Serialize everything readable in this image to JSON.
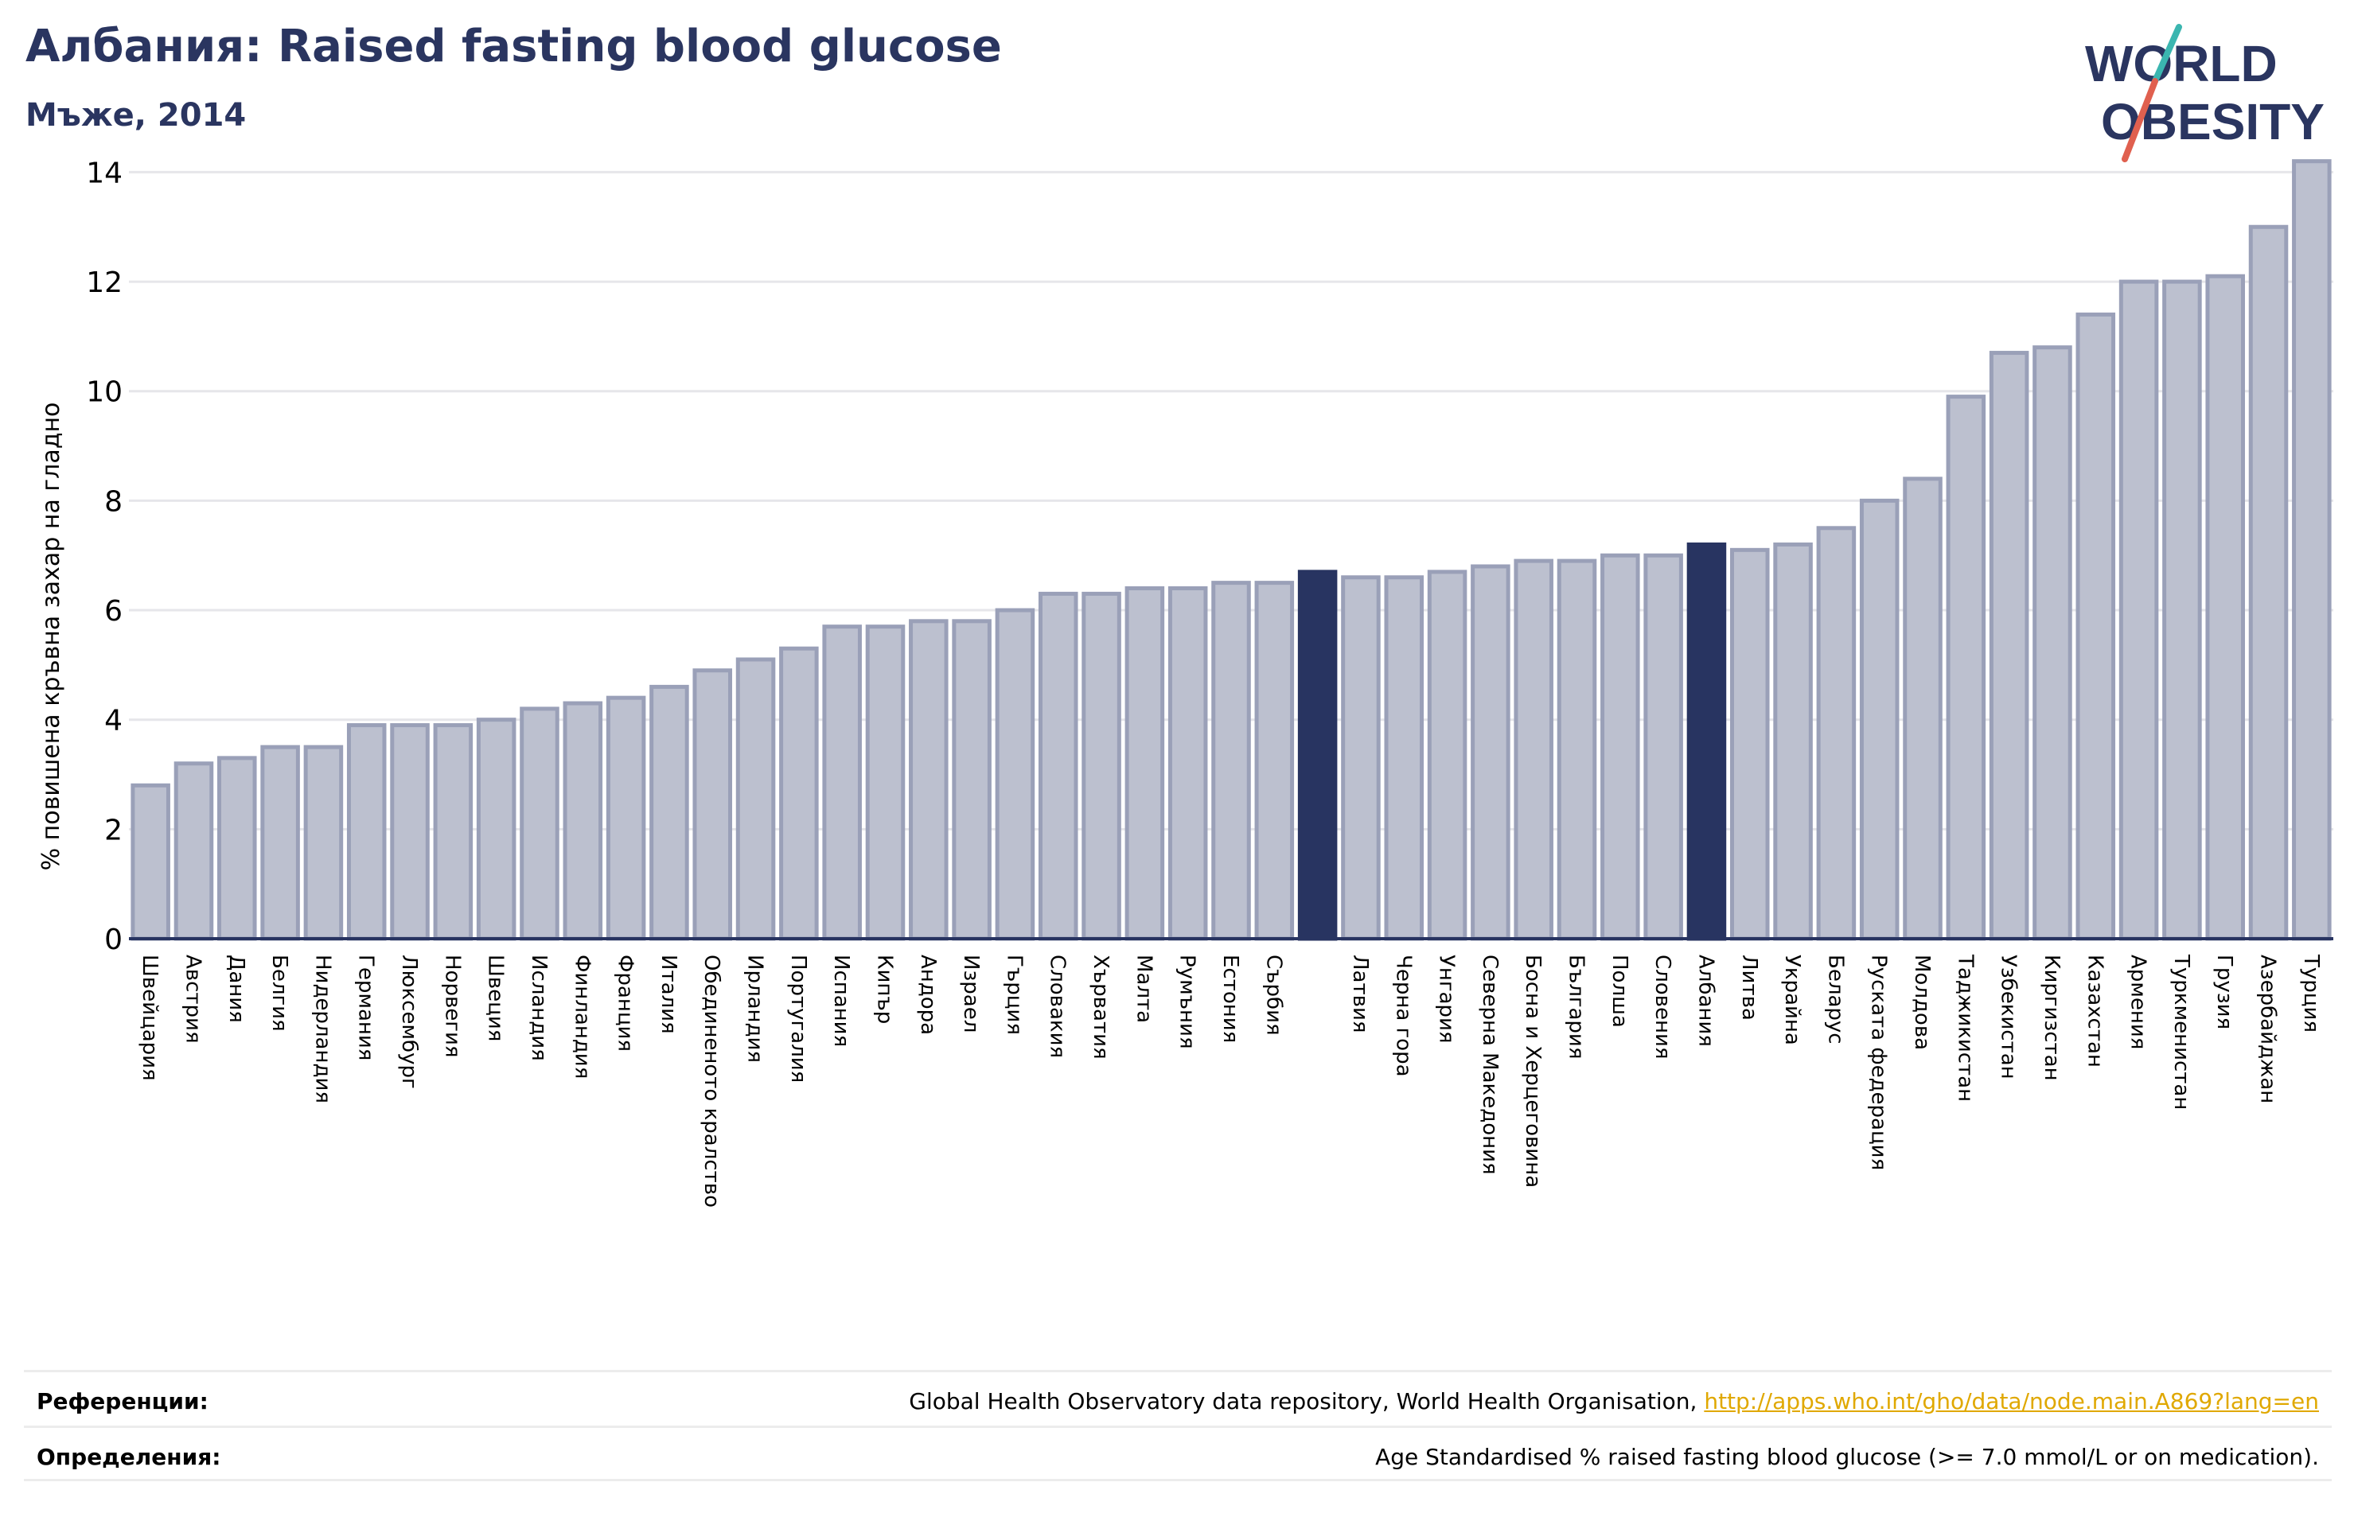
{
  "header": {
    "title": "Албания: Raised fasting blood glucose",
    "subtitle": "Мъже, 2014"
  },
  "logo": {
    "line1": "WORLD",
    "line2": "OBESITY",
    "slash_top_color": "#3bb6b0",
    "slash_bottom_color": "#e0604f",
    "text_color": "#2a3560"
  },
  "colors": {
    "bar_fill": "#bcc0cf",
    "bar_stroke": "#9aa0b8",
    "highlight": "#283461",
    "axis": "#283461",
    "grid": "#e6e6ea"
  },
  "chart_data": {
    "type": "bar",
    "ylabel": "% повишена кръвна захар на гладно",
    "ylim": [
      0,
      14.5
    ],
    "yticks": [
      0,
      2,
      4,
      6,
      8,
      10,
      12,
      14
    ],
    "grid": true,
    "categories": [
      "Швейцария",
      "Австрия",
      "Дания",
      "Белгия",
      "Нидерландия",
      "Германия",
      "Люксембург",
      "Норвегия",
      "Швеция",
      "Исландия",
      "Финландия",
      "Франция",
      "Италия",
      "Обединеното кралство",
      "Ирландия",
      "Португалия",
      "Испания",
      "Кипър",
      "Андора",
      "Израел",
      "Гърция",
      "Словакия",
      "Хърватия",
      "Малта",
      "Румъния",
      "Естония",
      "Сърбия",
      "",
      "Латвия",
      "Черна гора",
      "Унгария",
      "Северна Македония",
      "Босна и Херцеговина",
      "България",
      "Полша",
      "Словения",
      "Албания",
      "Литва",
      "Украйна",
      "Беларус",
      "Руската федерация",
      "Молдова",
      "Таджикистан",
      "Узбекистан",
      "Киргизстан",
      "Казахстан",
      "Армения",
      "Туркменистан",
      "Грузия",
      "Азербайджан",
      "Турция"
    ],
    "values": [
      2.8,
      3.2,
      3.3,
      3.5,
      3.5,
      3.9,
      3.9,
      3.9,
      4.0,
      4.2,
      4.3,
      4.4,
      4.6,
      4.9,
      5.1,
      5.3,
      5.7,
      5.7,
      5.8,
      5.8,
      6.0,
      6.3,
      6.3,
      6.4,
      6.4,
      6.5,
      6.5,
      6.7,
      6.6,
      6.6,
      6.7,
      6.8,
      6.9,
      6.9,
      7.0,
      7.0,
      7.2,
      7.1,
      7.2,
      7.5,
      8.0,
      8.4,
      9.9,
      10.7,
      10.8,
      11.4,
      12.0,
      12.0,
      12.1,
      13.0,
      14.2
    ],
    "highlighted_indices": [
      27,
      36
    ]
  },
  "references": {
    "label": "Референции:",
    "text": "Global Health Observatory data repository, World Health Organisation, ",
    "link": "http://apps.who.int/gho/data/node.main.A869?lang=en"
  },
  "definitions": {
    "label": "Определения:",
    "text": "Age Standardised % raised fasting blood glucose (>= 7.0 mmol/L or on medication)."
  }
}
